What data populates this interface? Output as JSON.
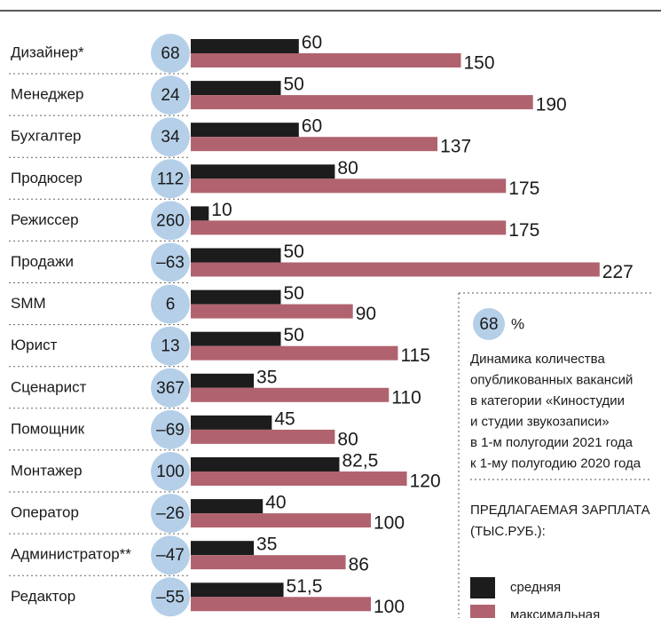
{
  "chart_data": {
    "type": "bar",
    "categories": [
      "Дизайнер*",
      "Менеджер",
      "Бухгалтер",
      "Продюсер",
      "Режиссер",
      "Продажи",
      "SMM",
      "Юрист",
      "Сценарист",
      "Помощник",
      "Монтажер",
      "Оператор",
      "Администратор**",
      "Редактор"
    ],
    "series": [
      {
        "name": "средняя",
        "color": "#1c1c1c",
        "values": [
          60,
          50,
          60,
          80,
          10,
          50,
          50,
          50,
          35,
          45,
          82.5,
          40,
          35,
          51.5
        ],
        "value_labels": [
          "60",
          "50",
          "60",
          "80",
          "10",
          "50",
          "50",
          "50",
          "35",
          "45",
          "82,5",
          "40",
          "35",
          "51,5"
        ]
      },
      {
        "name": "максимальная",
        "color": "#b0636f",
        "values": [
          150,
          190,
          137,
          175,
          175,
          227,
          90,
          115,
          110,
          80,
          120,
          100,
          86,
          100
        ]
      }
    ],
    "dynamics": {
      "color": "#b5cfe8",
      "values": [
        68,
        24,
        34,
        112,
        260,
        -63,
        6,
        13,
        367,
        -69,
        100,
        -26,
        -47,
        -55
      ],
      "value_labels": [
        "68",
        "24",
        "34",
        "112",
        "260",
        "–63",
        "6",
        "13",
        "367",
        "–69",
        "100",
        "–26",
        "–47",
        "–55"
      ]
    },
    "legend": {
      "sample": "68",
      "unit": "%",
      "description": [
        "Динамика количества",
        "опубликованных вакансий",
        "в категории «Киностудии",
        "и студии звукозаписи»",
        "в 1-м полугодии 2021 года",
        "к 1-му полугодию 2020 года"
      ],
      "title": [
        "ПРЕДЛАГАЕМАЯ ЗАРПЛАТА",
        "(ТЫС.РУБ.):"
      ]
    }
  }
}
